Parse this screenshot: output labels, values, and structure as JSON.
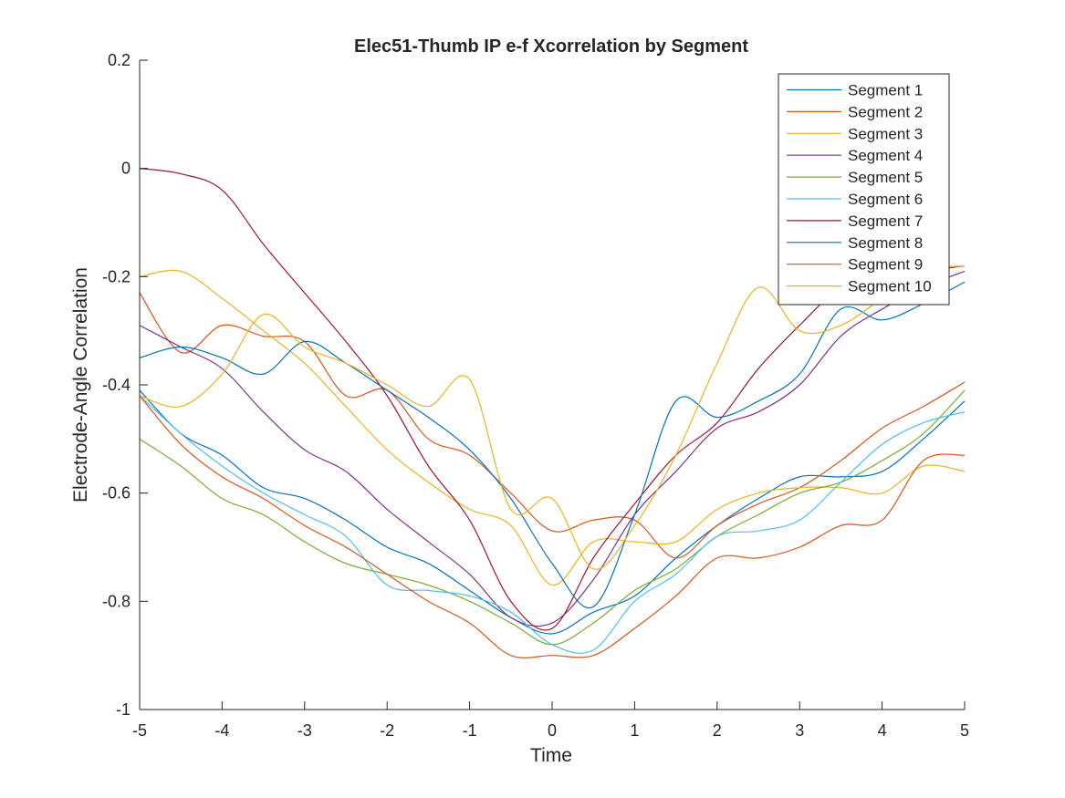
{
  "chart_data": {
    "type": "line",
    "title": "Elec51-Thumb IP e-f Xcorrelation by Segment",
    "xlabel": "Time",
    "ylabel": "Electrode-Angle Correlation",
    "xlim": [
      -5,
      5
    ],
    "ylim": [
      -1,
      0.2
    ],
    "xticks": [
      -5,
      -4,
      -3,
      -2,
      -1,
      0,
      1,
      2,
      3,
      4,
      5
    ],
    "yticks": [
      0.2,
      0,
      -0.2,
      -0.4,
      -0.6,
      -0.8,
      -1
    ],
    "xtick_labels": [
      "-5",
      "-4",
      "-3",
      "-2",
      "-1",
      "0",
      "1",
      "2",
      "3",
      "4",
      "5"
    ],
    "ytick_labels": [
      "0.2",
      "0",
      "-0.2",
      "-0.4",
      "-0.6",
      "-0.8",
      "-1"
    ],
    "grid": false,
    "legend_position": "top-right",
    "x": [
      -5,
      -4.5,
      -4,
      -3.5,
      -3,
      -2.5,
      -2,
      -1.5,
      -1,
      -0.5,
      0,
      0.5,
      1,
      1.5,
      2,
      2.5,
      3,
      3.5,
      4,
      4.5,
      5
    ],
    "series": [
      {
        "name": "Segment 1",
        "color": "#0072BD",
        "values": [
          -0.41,
          -0.49,
          -0.53,
          -0.59,
          -0.61,
          -0.65,
          -0.7,
          -0.73,
          -0.78,
          -0.83,
          -0.86,
          -0.82,
          -0.79,
          -0.72,
          -0.66,
          -0.61,
          -0.57,
          -0.57,
          -0.56,
          -0.5,
          -0.43
        ]
      },
      {
        "name": "Segment 2",
        "color": "#D95319",
        "values": [
          -0.23,
          -0.34,
          -0.29,
          -0.31,
          -0.32,
          -0.42,
          -0.41,
          -0.5,
          -0.53,
          -0.6,
          -0.67,
          -0.65,
          -0.65,
          -0.72,
          -0.66,
          -0.62,
          -0.59,
          -0.54,
          -0.48,
          -0.44,
          -0.395
        ]
      },
      {
        "name": "Segment 3",
        "color": "#EDB120",
        "values": [
          -0.2,
          -0.19,
          -0.24,
          -0.3,
          -0.36,
          -0.44,
          -0.52,
          -0.58,
          -0.63,
          -0.66,
          -0.77,
          -0.69,
          -0.69,
          -0.69,
          -0.63,
          -0.6,
          -0.59,
          -0.59,
          -0.6,
          -0.55,
          -0.56
        ]
      },
      {
        "name": "Segment 4",
        "color": "#7E2F8E",
        "values": [
          -0.29,
          -0.33,
          -0.37,
          -0.45,
          -0.52,
          -0.56,
          -0.63,
          -0.69,
          -0.75,
          -0.83,
          -0.84,
          -0.76,
          -0.64,
          -0.56,
          -0.48,
          -0.45,
          -0.4,
          -0.31,
          -0.26,
          -0.22,
          -0.19
        ]
      },
      {
        "name": "Segment 5",
        "color": "#77AC30",
        "values": [
          -0.5,
          -0.55,
          -0.61,
          -0.64,
          -0.69,
          -0.73,
          -0.75,
          -0.77,
          -0.8,
          -0.84,
          -0.88,
          -0.84,
          -0.78,
          -0.74,
          -0.68,
          -0.64,
          -0.6,
          -0.58,
          -0.54,
          -0.49,
          -0.41
        ]
      },
      {
        "name": "Segment 6",
        "color": "#4DBEEE",
        "values": [
          -0.42,
          -0.49,
          -0.55,
          -0.6,
          -0.64,
          -0.68,
          -0.77,
          -0.78,
          -0.79,
          -0.82,
          -0.88,
          -0.89,
          -0.8,
          -0.75,
          -0.68,
          -0.67,
          -0.65,
          -0.58,
          -0.51,
          -0.47,
          -0.45
        ]
      },
      {
        "name": "Segment 7",
        "color": "#A2142F",
        "values": [
          0.0,
          -0.01,
          -0.04,
          -0.14,
          -0.23,
          -0.32,
          -0.42,
          -0.55,
          -0.65,
          -0.8,
          -0.85,
          -0.72,
          -0.62,
          -0.53,
          -0.47,
          -0.37,
          -0.29,
          -0.22,
          -0.2,
          -0.19,
          -0.18
        ]
      },
      {
        "name": "Segment 8",
        "color": "#0072BD",
        "values": [
          -0.35,
          -0.33,
          -0.35,
          -0.38,
          -0.32,
          -0.36,
          -0.41,
          -0.46,
          -0.52,
          -0.61,
          -0.73,
          -0.81,
          -0.64,
          -0.43,
          -0.46,
          -0.43,
          -0.38,
          -0.26,
          -0.28,
          -0.25,
          -0.21
        ]
      },
      {
        "name": "Segment 9",
        "color": "#D95319",
        "values": [
          -0.42,
          -0.51,
          -0.57,
          -0.61,
          -0.66,
          -0.7,
          -0.75,
          -0.8,
          -0.84,
          -0.9,
          -0.9,
          -0.9,
          -0.85,
          -0.79,
          -0.72,
          -0.72,
          -0.7,
          -0.66,
          -0.65,
          -0.54,
          -0.53
        ]
      },
      {
        "name": "Segment 10",
        "color": "#EDB120",
        "values": [
          -0.42,
          -0.44,
          -0.38,
          -0.27,
          -0.33,
          -0.36,
          -0.4,
          -0.44,
          -0.39,
          -0.63,
          -0.61,
          -0.74,
          -0.66,
          -0.53,
          -0.36,
          -0.22,
          -0.3,
          -0.29,
          -0.24,
          -0.19,
          -0.18
        ]
      }
    ]
  }
}
